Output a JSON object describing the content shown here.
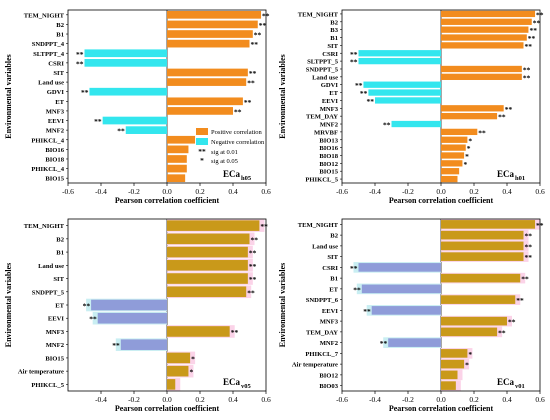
{
  "figure": {
    "ylabel": "Environmental variables",
    "xlabel": "Pearson correlation coefficient",
    "legend": {
      "positive": "Positive correlation",
      "negative": "Negative correlation",
      "sig001_mark": "**",
      "sig001_label": "sig at 0.01",
      "sig005_mark": "*",
      "sig005_label": "sig at 0.05"
    },
    "colors": {
      "positive": "#f28c1e",
      "negative": "#33e6ee",
      "positive_band": "#fbd3e8",
      "negative_band": "#c9eef2",
      "positive_dim": "#c9991a",
      "negative_dim": "#8f9cd9"
    }
  },
  "chart_data": [
    {
      "type": "bar",
      "panel": "top-left",
      "label_main": "ECa",
      "label_sub": "h05",
      "xlim": [
        -0.6,
        0.6
      ],
      "xticks": [
        "-0.6",
        "-0.4",
        "-0.2",
        "0.0",
        "0.2",
        "0.4",
        "0.6"
      ],
      "bands": false,
      "legend": true,
      "categories": [
        "TEM_NIGHT",
        "B2",
        "B1",
        "SNDPPT_4",
        "SLTPPT_4",
        "CSRI",
        "SIT",
        "Land use",
        "GDVI",
        "ET",
        "MNF3",
        "EEVI",
        "MNF2",
        "PHIKCL_4",
        "BIO16",
        "BIO18",
        "PHIKCL_4",
        "BIO15"
      ],
      "tick_labels": [
        "TEM_NIGHT",
        "B2",
        "B1",
        "SNDPPT_4",
        "SLTPPT_4",
        "CSRI",
        "SIT",
        "Land use",
        "GDVI",
        "ET",
        "MNF3",
        "EEVI",
        "MNF2",
        "PHIKCL_4",
        "BIO16",
        "BIO18",
        "PHIKCL_4",
        "BIO15"
      ],
      "values": [
        0.57,
        0.55,
        0.52,
        0.5,
        -0.5,
        -0.5,
        0.49,
        0.48,
        -0.47,
        0.46,
        0.4,
        -0.39,
        -0.25,
        0.17,
        0.13,
        0.12,
        0.12,
        0.11
      ],
      "sig": [
        "**",
        "**",
        "**",
        "**",
        "**",
        "**",
        "**",
        "**",
        "**",
        "**",
        "**",
        "**",
        "**",
        "",
        "",
        "",
        "",
        ""
      ]
    },
    {
      "type": "bar",
      "panel": "top-right",
      "label_main": "ECa",
      "label_sub": "h01",
      "xlim": [
        -0.6,
        0.6
      ],
      "xticks": [
        "-0.6",
        "-0.4",
        "-0.2",
        "0.0",
        "0.2",
        "0.4",
        "0.6"
      ],
      "bands": false,
      "legend": false,
      "categories": [
        "TEM_NIGHT",
        "B2",
        "B3",
        "B1",
        "SIT",
        "CSRI",
        "SLTPPT_5",
        "SNDPPT_5",
        "Land use",
        "GDVI",
        "ET",
        "EEVI",
        "MNF3",
        "TEM_DAY",
        "MNF2",
        "MRVBF",
        "BIO13",
        "BIO16",
        "BIO18",
        "BIO12",
        "BIO15",
        "PHIKCL_5"
      ],
      "tick_labels": [
        "TEM_NIGHT",
        "B2",
        "B3",
        "B1",
        "SIT",
        "CSRI",
        "SLTPPT_5",
        "SNDPPT_5",
        "Land use",
        "GDVI",
        "ET",
        "EEVI",
        "MNF3",
        "TEM_DAY",
        "MNF2",
        "MRVBF",
        "BIO13",
        "BIO16",
        "BIO18",
        "BIO12",
        "BIO15",
        "PHIKCL_5"
      ],
      "values": [
        0.57,
        0.55,
        0.53,
        0.52,
        0.5,
        -0.5,
        -0.5,
        0.49,
        0.49,
        -0.47,
        -0.44,
        -0.4,
        0.38,
        0.34,
        -0.3,
        0.22,
        0.16,
        0.15,
        0.14,
        0.13,
        0.11,
        0.1
      ],
      "sig": [
        "**",
        "**",
        "**",
        "**",
        "**",
        "**",
        "**",
        "**",
        "**",
        "**",
        "**",
        "**",
        "**",
        "**",
        "**",
        "**",
        "*",
        "*",
        "*",
        "*",
        "",
        ""
      ]
    },
    {
      "type": "bar",
      "panel": "bottom-left",
      "label_main": "ECa",
      "label_sub": "v05",
      "xlim": [
        -0.6,
        0.6
      ],
      "xticks": [
        "-0.4",
        "-0.2",
        "0.0",
        "0.2",
        "0.4",
        "0.6"
      ],
      "bands": true,
      "legend": false,
      "categories": [
        "TEM_NIGHT",
        "B2",
        "B1",
        "Land use",
        "SIT",
        "SNDPPT_5",
        "ET",
        "EEVI",
        "MNF3",
        "MNF2",
        "BIO15",
        "Air temperature",
        "PHIKCL_5"
      ],
      "tick_labels": [
        "TEM_NIGHT",
        "B2",
        "B1",
        "Land use",
        "SIT",
        "SNDPPT_5",
        "ET",
        "EEVI",
        "MNF3",
        "MNF2",
        "BIO15",
        "Air temperature",
        "PHIKCL_5"
      ],
      "values": [
        0.56,
        0.5,
        0.49,
        0.49,
        0.49,
        0.48,
        -0.46,
        -0.42,
        0.38,
        -0.28,
        0.14,
        0.13,
        0.05
      ],
      "sig": [
        "**",
        "**",
        "**",
        "**",
        "**",
        "**",
        "**",
        "**",
        "**",
        "**",
        "*",
        "*",
        ""
      ]
    },
    {
      "type": "bar",
      "panel": "bottom-right",
      "label_main": "ECa",
      "label_sub": "v01",
      "xlim": [
        -0.6,
        0.6
      ],
      "xticks": [
        "-0.6",
        "-0.4",
        "-0.2",
        "0.0",
        "0.2",
        "0.4",
        "0.6"
      ],
      "bands": true,
      "legend": false,
      "categories": [
        "TEM_NIGHT",
        "B2",
        "Land use",
        "SIT",
        "CSRI",
        "B1",
        "ET",
        "SNDPPT_6",
        "EEVI",
        "MNF3",
        "TEM_DAY",
        "MNF2",
        "PHIKCL_7",
        "Air temperature",
        "BIO12",
        "BIO03"
      ],
      "tick_labels": [
        "TEM_NIGHT",
        "B2",
        "Land use",
        "SIT",
        "CSRI",
        "B1",
        "ET",
        "SNDPPT_6",
        "EEVI",
        "MNF3",
        "TEM_DAY",
        "MNF2",
        "PHIKCL_7",
        "Air temperature",
        "BIO12",
        "BIO03"
      ],
      "values": [
        0.57,
        0.5,
        0.5,
        0.5,
        -0.5,
        0.48,
        -0.48,
        0.45,
        -0.42,
        0.4,
        0.34,
        -0.32,
        0.16,
        0.14,
        0.1,
        0.09
      ],
      "sig": [
        "**",
        "**",
        "**",
        "**",
        "**",
        "**",
        "**",
        "**",
        "**",
        "**",
        "**",
        "**",
        "*",
        "*",
        "",
        ""
      ]
    }
  ]
}
